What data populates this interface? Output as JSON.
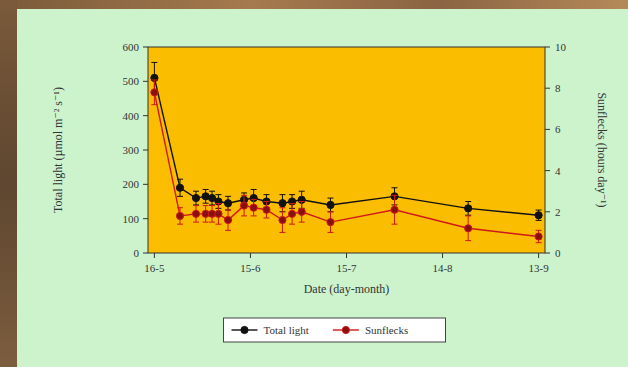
{
  "chart_data": {
    "type": "line",
    "x_label": "Date (day-month)",
    "y_label": "Total light (µmol m⁻² s⁻¹)",
    "y2_label": "Sunflecks (hours day⁻¹)",
    "x": [
      136,
      144,
      149,
      152,
      154,
      156,
      159,
      164,
      167,
      171,
      176,
      179,
      182,
      191,
      211,
      234,
      256
    ],
    "xlim": [
      134,
      258
    ],
    "xticks": [
      {
        "value": 136,
        "label": "16-5"
      },
      {
        "value": 166,
        "label": "15-6"
      },
      {
        "value": 196,
        "label": "15-7"
      },
      {
        "value": 226,
        "label": "14-8"
      },
      {
        "value": 256,
        "label": "13-9"
      }
    ],
    "ylim": [
      0,
      600
    ],
    "yticks": [
      0,
      100,
      200,
      300,
      400,
      500,
      600
    ],
    "y2lim": [
      0,
      10
    ],
    "y2ticks": [
      0,
      2,
      4,
      6,
      8,
      10
    ],
    "legend": "bottom",
    "grid": false,
    "series": [
      {
        "name": "Total light",
        "color": "#111111",
        "marker": "circle",
        "line_style": "solid",
        "values": [
          510,
          190,
          160,
          165,
          160,
          150,
          145,
          155,
          160,
          150,
          145,
          150,
          155,
          140,
          165,
          130,
          110
        ],
        "errors": [
          45,
          25,
          20,
          20,
          20,
          20,
          20,
          20,
          25,
          20,
          25,
          20,
          25,
          20,
          25,
          20,
          15
        ]
      },
      {
        "name": "Sunflecks",
        "color": "#d01818",
        "marker": "circle",
        "line_style": "solid",
        "axis": "y2",
        "values": [
          7.8,
          1.8,
          1.9,
          1.9,
          1.9,
          1.9,
          1.6,
          2.3,
          2.2,
          2.1,
          1.6,
          1.9,
          2.0,
          1.5,
          2.1,
          1.2,
          0.8
        ],
        "errors": [
          0.6,
          0.4,
          0.4,
          0.4,
          0.4,
          0.5,
          0.5,
          0.5,
          0.4,
          0.4,
          0.6,
          0.5,
          0.5,
          0.5,
          0.7,
          0.6,
          0.3
        ]
      }
    ]
  }
}
